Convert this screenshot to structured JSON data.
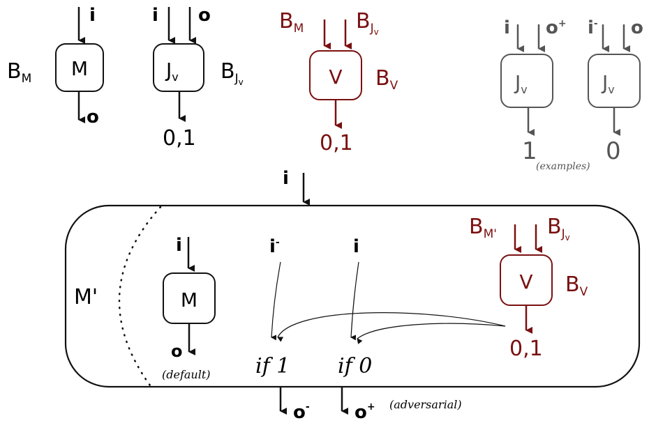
{
  "colors": {
    "black": "#111111",
    "red": "#7a1010",
    "gray": "#555555"
  },
  "labels": {
    "i": "i",
    "i_minus": "i",
    "minus": "-",
    "plus": "+",
    "o": "o",
    "M": "M",
    "M_prime": "M'",
    "J": "J",
    "v": "v",
    "V": "V",
    "B": "B",
    "sub_M": "M",
    "sub_M_prime": "M'",
    "sub_J": "J",
    "sub_V": "V",
    "zero_one": "0,1",
    "one": "1",
    "zero": "0",
    "examples": "(examples)",
    "default": "(default)",
    "adversarial": "(adversarial)",
    "if1": "if 1",
    "if0": "if 0"
  }
}
